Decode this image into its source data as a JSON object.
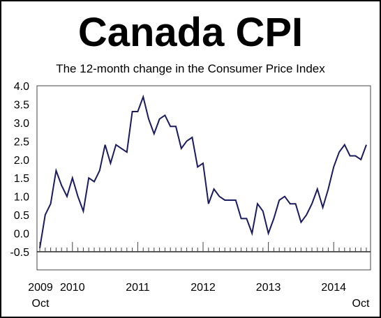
{
  "chart_data": {
    "type": "line",
    "title": "Canada CPI",
    "subtitle": "The 12-month change in the Consumer Price Index",
    "xlabel": "",
    "ylabel": "",
    "ylim": [
      -0.5,
      4.0
    ],
    "yticks": [
      "4.0",
      "3.5",
      "3.0",
      "2.5",
      "2.0",
      "1.5",
      "1.0",
      "0.5",
      "0.0",
      "-0.5"
    ],
    "ytick_values": [
      4.0,
      3.5,
      3.0,
      2.5,
      2.0,
      1.5,
      1.0,
      0.5,
      0.0,
      -0.5
    ],
    "x_start": "2009-10",
    "x_end": "2014-10",
    "xtick_labels": [
      {
        "text": "2009",
        "month_index": 0,
        "sub": "Oct"
      },
      {
        "text": "2010",
        "month_index": 6
      },
      {
        "text": "2011",
        "month_index": 18
      },
      {
        "text": "2012",
        "month_index": 30
      },
      {
        "text": "2013",
        "month_index": 42
      },
      {
        "text": "2014",
        "month_index": 54
      },
      {
        "text": "",
        "month_index": 60,
        "sub": "Oct"
      }
    ],
    "grid": false,
    "series": [
      {
        "line_color": "#1a1a5e",
        "x": [
          "2009-10",
          "2009-11",
          "2009-12",
          "2010-01",
          "2010-02",
          "2010-03",
          "2010-04",
          "2010-05",
          "2010-06",
          "2010-07",
          "2010-08",
          "2010-09",
          "2010-10",
          "2010-11",
          "2010-12",
          "2011-01",
          "2011-02",
          "2011-03",
          "2011-04",
          "2011-05",
          "2011-06",
          "2011-07",
          "2011-08",
          "2011-09",
          "2011-10",
          "2011-11",
          "2011-12",
          "2012-01",
          "2012-02",
          "2012-03",
          "2012-04",
          "2012-05",
          "2012-06",
          "2012-07",
          "2012-08",
          "2012-09",
          "2012-10",
          "2012-11",
          "2012-12",
          "2013-01",
          "2013-02",
          "2013-03",
          "2013-04",
          "2013-05",
          "2013-06",
          "2013-07",
          "2013-08",
          "2013-09",
          "2013-10",
          "2013-11",
          "2013-12",
          "2014-01",
          "2014-02",
          "2014-03",
          "2014-04",
          "2014-05",
          "2014-06",
          "2014-07",
          "2014-08",
          "2014-09",
          "2014-10"
        ],
        "values": [
          -0.4,
          0.5,
          0.8,
          1.7,
          1.3,
          1.0,
          1.5,
          1.0,
          0.6,
          1.5,
          1.4,
          1.7,
          2.4,
          1.9,
          2.4,
          2.3,
          2.2,
          3.3,
          3.3,
          3.7,
          3.1,
          2.7,
          3.1,
          3.2,
          2.9,
          2.9,
          2.3,
          2.5,
          2.6,
          1.8,
          1.9,
          0.8,
          1.2,
          1.0,
          0.9,
          0.9,
          0.9,
          0.4,
          0.4,
          0.0,
          0.8,
          0.6,
          0.0,
          0.4,
          0.9,
          1.0,
          0.8,
          0.8,
          0.3,
          0.5,
          0.8,
          1.2,
          0.7,
          1.2,
          1.8,
          2.2,
          2.4,
          2.1,
          2.1,
          2.0,
          2.4
        ]
      }
    ]
  }
}
